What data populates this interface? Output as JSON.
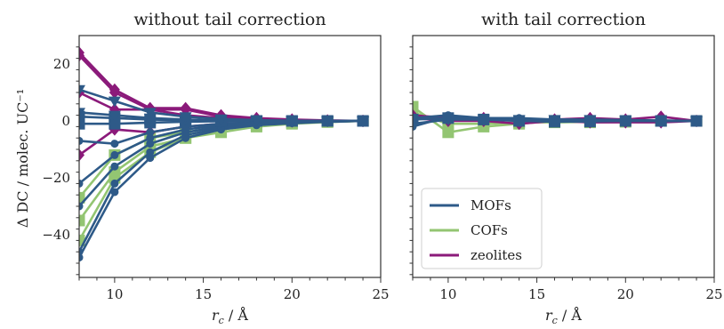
{
  "chart_data": [
    {
      "type": "line",
      "title": "without tail correction",
      "xlabel": "r_c / Å",
      "ylabel": "Δ DC / molec. UC⁻¹",
      "xlim": [
        8,
        25
      ],
      "ylim": [
        -55,
        30
      ],
      "xticks": [
        "10",
        "15",
        "20",
        "25"
      ],
      "yticks": [
        "−40",
        "−20",
        "0",
        "20"
      ],
      "grid": false,
      "series": [
        {
          "name": "MOFs",
          "marker": "circle",
          "x": [
            8,
            10,
            12,
            14,
            16,
            18,
            20,
            22,
            24
          ],
          "y": [
            -48,
            -25,
            -13,
            -6,
            -3,
            -1.5,
            -0.8,
            -0.3,
            0
          ]
        },
        {
          "name": "MOFs",
          "marker": "circle",
          "x": [
            8,
            10,
            12,
            14,
            16,
            18,
            20,
            22,
            24
          ],
          "y": [
            -46,
            -22,
            -11,
            -5,
            -2.5,
            -1.2,
            -0.6,
            -0.2,
            0
          ]
        },
        {
          "name": "MOFs",
          "marker": "circle",
          "x": [
            8,
            10,
            12,
            14,
            16,
            18,
            20,
            22,
            24
          ],
          "y": [
            -30,
            -16,
            -8,
            -4,
            -2,
            -1,
            -0.5,
            -0.2,
            0
          ]
        },
        {
          "name": "MOFs",
          "marker": "circle",
          "x": [
            8,
            10,
            12,
            14,
            16,
            18,
            20,
            22,
            24
          ],
          "y": [
            -22,
            -12,
            -6,
            -3,
            -1.5,
            -0.8,
            -0.4,
            -0.1,
            0
          ]
        },
        {
          "name": "MOFs",
          "marker": "circle",
          "x": [
            8,
            10,
            12,
            14,
            16,
            18,
            20,
            22,
            24
          ],
          "y": [
            -7,
            -8,
            -4,
            -2,
            -1,
            -0.5,
            -0.3,
            -0.1,
            0
          ]
        },
        {
          "name": "MOFs",
          "marker": "square",
          "x": [
            8,
            10,
            12,
            14,
            16,
            18,
            20,
            22,
            24
          ],
          "y": [
            -1,
            -1,
            -0.6,
            -0.3,
            -0.1,
            0,
            0,
            0,
            0
          ]
        },
        {
          "name": "MOFs",
          "marker": "square",
          "x": [
            8,
            10,
            12,
            14,
            16,
            18,
            20,
            22,
            24
          ],
          "y": [
            1.5,
            1,
            0.5,
            0.2,
            0.1,
            0,
            0,
            0,
            0
          ]
        },
        {
          "name": "MOFs",
          "marker": "triangle",
          "x": [
            8,
            10,
            12,
            14,
            16,
            18,
            20,
            22,
            24
          ],
          "y": [
            3,
            2,
            1,
            0.5,
            0.2,
            0.1,
            0,
            0,
            0
          ]
        },
        {
          "name": "MOFs",
          "marker": "triangle",
          "x": [
            8,
            10,
            12,
            14,
            16,
            18,
            20,
            22,
            24
          ],
          "y": [
            11,
            7,
            3,
            1.5,
            0.7,
            0.3,
            0.1,
            0,
            0
          ]
        },
        {
          "name": "COFs",
          "marker": "square",
          "x": [
            8,
            10,
            12,
            14,
            16,
            18,
            20,
            22,
            24
          ],
          "y": [
            -42,
            -20,
            -11,
            -6,
            -4,
            -2,
            -1,
            -0.4,
            0
          ]
        },
        {
          "name": "COFs",
          "marker": "square",
          "x": [
            8,
            10,
            12,
            14,
            16,
            18,
            20,
            22,
            24
          ],
          "y": [
            -35,
            -18,
            -9,
            -6,
            -3,
            -1.5,
            -0.8,
            -0.3,
            0
          ]
        },
        {
          "name": "COFs",
          "marker": "square",
          "x": [
            8,
            10,
            12,
            14,
            16,
            18,
            20,
            22,
            24
          ],
          "y": [
            -27,
            -12,
            -6,
            -4,
            -2,
            -1,
            -0.5,
            -0.2,
            0
          ]
        },
        {
          "name": "zeolites",
          "marker": "diamond",
          "x": [
            8,
            10,
            12,
            14,
            16,
            18,
            20,
            22,
            24
          ],
          "y": [
            24,
            11,
            4.5,
            4.5,
            2,
            1,
            0.5,
            0.2,
            0
          ]
        },
        {
          "name": "zeolites",
          "marker": "diamond",
          "x": [
            8,
            10,
            12,
            14,
            16,
            18,
            20,
            22,
            24
          ],
          "y": [
            23,
            10,
            4,
            4,
            1.5,
            0.5,
            0.2,
            0,
            0
          ]
        },
        {
          "name": "zeolites",
          "marker": "diamond",
          "x": [
            8,
            10,
            12,
            14,
            16,
            18,
            20,
            22,
            24
          ],
          "y": [
            10,
            4,
            4,
            2,
            1,
            0.5,
            0.2,
            0,
            0
          ]
        },
        {
          "name": "zeolites",
          "marker": "diamond",
          "x": [
            8,
            10,
            12,
            14,
            16,
            18,
            20,
            22,
            24
          ],
          "y": [
            -12,
            -3,
            -4,
            -2,
            -1,
            -0.5,
            -0.2,
            0,
            0
          ]
        }
      ]
    },
    {
      "type": "line",
      "title": "with tail correction",
      "xlabel": "r_c / Å",
      "ylabel": "",
      "xlim": [
        8,
        25
      ],
      "ylim": [
        -55,
        30
      ],
      "xticks": [
        "10",
        "15",
        "20",
        "25"
      ],
      "yticks": [],
      "grid": false,
      "legend": {
        "position": "lower-left",
        "entries": [
          "MOFs",
          "COFs",
          "zeolites"
        ]
      },
      "series": [
        {
          "name": "MOFs",
          "marker": "circle",
          "x": [
            8,
            10,
            12,
            14,
            16,
            18,
            20,
            22,
            24
          ],
          "y": [
            -2,
            1.5,
            1,
            0.5,
            0.3,
            0.2,
            0,
            0,
            0
          ]
        },
        {
          "name": "MOFs",
          "marker": "circle",
          "x": [
            8,
            10,
            12,
            14,
            16,
            18,
            20,
            22,
            24
          ],
          "y": [
            1,
            2,
            1,
            1,
            0.5,
            0.3,
            0.1,
            0,
            0
          ]
        },
        {
          "name": "MOFs",
          "marker": "triangle",
          "x": [
            8,
            10,
            12,
            14,
            16,
            18,
            20,
            22,
            24
          ],
          "y": [
            -1,
            0.5,
            0.5,
            0.5,
            0.5,
            0.5,
            0.3,
            0.2,
            0
          ]
        },
        {
          "name": "MOFs",
          "marker": "square",
          "x": [
            8,
            10,
            12,
            14,
            16,
            18,
            20,
            22,
            24
          ],
          "y": [
            0.5,
            1,
            0.5,
            0,
            -0.3,
            -0.2,
            0,
            0,
            0
          ]
        },
        {
          "name": "COFs",
          "marker": "square",
          "x": [
            8,
            10,
            12,
            14,
            16,
            18,
            20,
            22,
            24
          ],
          "y": [
            5,
            -4,
            -2,
            -1,
            0,
            -0.5,
            -0.3,
            0,
            0
          ]
        },
        {
          "name": "COFs",
          "marker": "square",
          "x": [
            8,
            10,
            12,
            14,
            16,
            18,
            20,
            22,
            24
          ],
          "y": [
            3,
            -1,
            -1,
            -0.5,
            -0.5,
            -0.3,
            0,
            0,
            0
          ]
        },
        {
          "name": "zeolites",
          "marker": "diamond",
          "x": [
            8,
            10,
            12,
            14,
            16,
            18,
            20,
            22,
            24
          ],
          "y": [
            2,
            1,
            1,
            0,
            0.5,
            1,
            0.5,
            1.5,
            0
          ]
        },
        {
          "name": "zeolites",
          "marker": "diamond",
          "x": [
            8,
            10,
            12,
            14,
            16,
            18,
            20,
            22,
            24
          ],
          "y": [
            1,
            0,
            0,
            -1,
            0,
            -0.5,
            -0.5,
            -0.5,
            0
          ]
        }
      ]
    }
  ],
  "colors": {
    "MOFs": "#2e5a88",
    "COFs": "#93c572",
    "zeolites": "#8b1a7a"
  }
}
